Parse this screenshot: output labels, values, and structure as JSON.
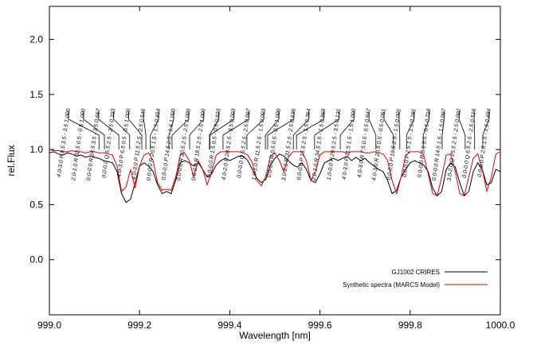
{
  "chart_data": {
    "type": "line",
    "xlabel": "Wavelength [nm]",
    "ylabel": "rel.Flux",
    "xlim": [
      999.0,
      1000.0
    ],
    "xticks": [
      {
        "value": 999.0,
        "label": "999.0"
      },
      {
        "value": 999.2,
        "label": "999.2"
      },
      {
        "value": 999.4,
        "label": "999.4"
      },
      {
        "value": 999.6,
        "label": "999.6"
      },
      {
        "value": 999.8,
        "label": "999.8"
      },
      {
        "value": 1000.0,
        "label": "1000.0"
      }
    ],
    "ylim": [
      -0.5,
      2.3
    ],
    "yticks": [
      {
        "value": 0,
        "label": "0.0"
      },
      {
        "value": 0.5,
        "label": "0.5"
      },
      {
        "value": 1,
        "label": "1.0"
      },
      {
        "value": 1.5,
        "label": "1.5"
      },
      {
        "value": 2,
        "label": "2.0"
      }
    ],
    "legend": "lower right",
    "x": [
      999.0,
      999.01,
      999.02,
      999.03,
      999.04,
      999.05,
      999.06,
      999.07,
      999.08,
      999.09,
      999.1,
      999.11,
      999.12,
      999.13,
      999.14,
      999.15,
      999.16,
      999.17,
      999.18,
      999.19,
      999.2,
      999.21,
      999.22,
      999.23,
      999.24,
      999.25,
      999.26,
      999.27,
      999.28,
      999.29,
      999.3,
      999.31,
      999.32,
      999.33,
      999.34,
      999.35,
      999.36,
      999.37,
      999.38,
      999.39,
      999.4,
      999.41,
      999.42,
      999.43,
      999.44,
      999.45,
      999.46,
      999.47,
      999.48,
      999.49,
      999.5,
      999.51,
      999.52,
      999.53,
      999.54,
      999.55,
      999.56,
      999.57,
      999.58,
      999.59,
      999.6,
      999.61,
      999.62,
      999.63,
      999.64,
      999.65,
      999.66,
      999.67,
      999.68,
      999.69,
      999.7,
      999.71,
      999.72,
      999.73,
      999.74,
      999.75,
      999.76,
      999.77,
      999.78,
      999.79,
      999.8,
      999.81,
      999.82,
      999.83,
      999.84,
      999.85,
      999.86,
      999.87,
      999.88,
      999.89,
      999.9,
      999.91,
      999.92,
      999.93,
      999.94,
      999.95,
      999.96,
      999.97,
      999.98,
      999.99,
      1000.0
    ],
    "series": [
      {
        "name": "GJ1002 CRIRES",
        "color": "#000000",
        "values": [
          0.97,
          0.98,
          0.96,
          0.95,
          0.97,
          0.96,
          0.94,
          0.95,
          0.93,
          0.94,
          0.93,
          0.92,
          0.9,
          0.89,
          0.88,
          0.8,
          0.6,
          0.52,
          0.55,
          0.7,
          0.85,
          0.88,
          0.85,
          0.8,
          0.68,
          0.6,
          0.62,
          0.6,
          0.72,
          0.88,
          0.9,
          0.88,
          0.85,
          0.88,
          0.82,
          0.75,
          0.78,
          0.86,
          0.9,
          0.92,
          0.9,
          0.92,
          0.94,
          0.94,
          0.9,
          0.82,
          0.74,
          0.7,
          0.73,
          0.86,
          0.92,
          0.96,
          0.94,
          0.9,
          0.86,
          0.84,
          0.88,
          0.82,
          0.72,
          0.7,
          0.78,
          0.88,
          0.9,
          0.92,
          0.9,
          0.92,
          0.94,
          0.9,
          0.93,
          0.9,
          0.92,
          0.88,
          0.85,
          0.82,
          0.8,
          0.72,
          0.6,
          0.63,
          0.75,
          0.82,
          0.88,
          0.9,
          0.88,
          0.86,
          0.8,
          0.65,
          0.58,
          0.62,
          0.82,
          0.88,
          0.84,
          0.7,
          0.58,
          0.62,
          0.8,
          0.88,
          0.82,
          0.68,
          0.7,
          0.82,
          0.8
        ]
      },
      {
        "name": "Synthetic spectra (MARCS Model)",
        "color": "#e00000",
        "values": [
          1.0,
          0.99,
          0.99,
          0.98,
          0.98,
          0.99,
          0.98,
          0.98,
          0.97,
          0.98,
          0.98,
          0.97,
          0.97,
          0.96,
          0.95,
          0.85,
          0.62,
          0.66,
          0.82,
          0.65,
          0.85,
          0.95,
          0.97,
          0.9,
          0.7,
          0.63,
          0.64,
          0.63,
          0.75,
          0.95,
          0.97,
          0.9,
          0.75,
          0.9,
          0.82,
          0.68,
          0.8,
          0.95,
          0.98,
          0.98,
          0.98,
          0.98,
          0.98,
          0.97,
          0.95,
          0.88,
          0.72,
          0.67,
          0.76,
          0.94,
          0.97,
          0.9,
          0.8,
          0.93,
          0.98,
          0.98,
          0.98,
          0.9,
          0.72,
          0.8,
          0.95,
          0.98,
          0.98,
          0.98,
          0.98,
          0.98,
          0.97,
          0.98,
          0.98,
          0.98,
          0.97,
          0.97,
          0.98,
          0.97,
          0.96,
          0.9,
          0.72,
          0.6,
          0.75,
          0.95,
          0.98,
          0.98,
          0.98,
          0.95,
          0.78,
          0.6,
          0.58,
          0.75,
          0.95,
          0.96,
          0.8,
          0.6,
          0.58,
          0.75,
          0.92,
          0.96,
          0.82,
          0.62,
          0.75,
          0.96,
          0.98
        ]
      }
    ],
    "line_labels": [
      "4.0-3.0 P 9.5 3.5 - 3.5 1.000",
      "2.0-1.0 R 32.5 0.5 - 0.5 1.000",
      "0.0-0.0 R 24.5 3.5 - 3.5 0.667",
      "0.0-0.0 Q 5.5 2.5 - 2.5 0.333",
      "4.0-3.0 P 6.5 0.5 - 0.5 1.000",
      "4.0-3.0 P 11.5 2.5 - 2.5 0.546",
      "0.0-0.0 R 20.5 1.5 - 1.5 0.454",
      "0.0-0.0 P 14.5 2.5 - 1.5 1.000",
      "0.0-0.0 R 20.5 2.5 - 2.5 1.000",
      "0.0-0.0 R 18.5 2.5 - 2.5 1.000",
      "0.0-0.0 R 1.5 0.5 - 0.5 0.823",
      "4.0-2.0 P 28.5 2.5 - 3.5 0.003",
      "0.0-0.0 Q 5.5 2.5 - 2.5 0.997",
      "1.0-1.0 R 11.5 2.5 - 1.5 0.003",
      "0.0-0.0 R 0.5 0.5 - 0.5 1.000",
      "3.0-2.0 R 31.5 2.5 - 2.5 0.636",
      "0.0-0.0 P 15.5 2.5 - 1.5 0.364",
      "2.0-1.0 R 34.5 1.5 - 1.5 0.869",
      "1.0-0.0 P 29.5 2.5 - 3.5 0.131",
      "4.0-3.0 P 11.5 1.5 - 1.5 1.000",
      "4.0-3.0 R 7.5 0.5 - 0.5 0.947",
      "4.0-3.0 R 20.5 0.5 - 0.5 0.051",
      "0.0-0.0 P 19.5 2.5 - 1.5 0.001",
      "0.0-0.0 P 2.5 1.5 - 1.5 0.281",
      "0.0-0.0 R 8.5 0.5 - 0.5 0.718",
      "0.0-0.0 R 14.5 1.5 - 1.5 0.997",
      "3.0-2.0 Q 25.5 2.5 - 2.5 0.002",
      "0.0-0.0 Q 6.5 2.5 - 2.5 0.516",
      "0.0-0.0 P 2.5 1.5 - 1.5 0.484"
    ],
    "line_wavelengths": [
      999.11,
      999.122,
      999.154,
      999.178,
      999.205,
      999.214,
      999.224,
      999.265,
      999.272,
      999.311,
      999.355,
      999.356,
      999.385,
      999.438,
      999.479,
      999.484,
      999.541,
      999.548,
      999.588,
      999.645,
      999.724,
      999.763,
      999.777,
      999.792,
      999.829,
      999.871,
      999.922,
      999.943,
      999.961
    ]
  }
}
